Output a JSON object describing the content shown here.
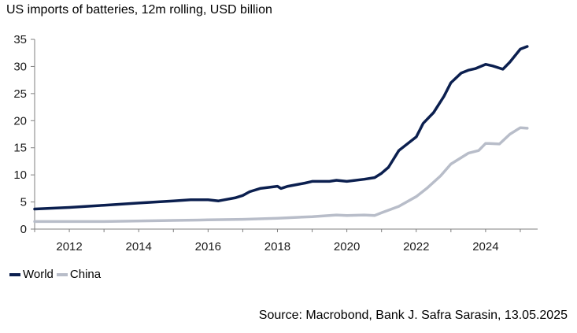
{
  "title": "US imports of batteries, 12m rolling, USD billion",
  "source": "Source: Macrobond, Bank J. Safra Sarasin, 13.05.2025",
  "colors": {
    "world": "#0b1f4f",
    "china": "#b8bdc9",
    "axis": "#7f7f7f"
  },
  "chart_data": {
    "type": "line",
    "title": "US imports of batteries, 12m rolling, USD billion",
    "xlabel": "",
    "ylabel": "",
    "xlim": [
      2011.0,
      2025.5
    ],
    "ylim": [
      0,
      35
    ],
    "yticks": [
      0,
      5,
      10,
      15,
      20,
      25,
      30,
      35
    ],
    "xticks": [
      2012,
      2014,
      2016,
      2018,
      2020,
      2022,
      2024
    ],
    "grid": false,
    "legend_position": "bottom-left",
    "series": [
      {
        "name": "World",
        "x": [
          2011.0,
          2012.0,
          2013.0,
          2014.0,
          2015.0,
          2015.5,
          2016.0,
          2016.3,
          2016.8,
          2017.0,
          2017.2,
          2017.5,
          2018.0,
          2018.1,
          2018.3,
          2018.8,
          2019.0,
          2019.5,
          2019.7,
          2020.0,
          2020.5,
          2020.8,
          2021.0,
          2021.2,
          2021.5,
          2022.0,
          2022.2,
          2022.5,
          2022.8,
          2023.0,
          2023.3,
          2023.5,
          2023.7,
          2024.0,
          2024.2,
          2024.4,
          2024.5,
          2024.7,
          2025.0,
          2025.2
        ],
        "values": [
          3.7,
          4.0,
          4.4,
          4.8,
          5.2,
          5.4,
          5.4,
          5.2,
          5.8,
          6.2,
          6.9,
          7.5,
          7.9,
          7.5,
          7.9,
          8.5,
          8.8,
          8.8,
          9.0,
          8.8,
          9.2,
          9.5,
          10.3,
          11.4,
          14.5,
          17.0,
          19.5,
          21.5,
          24.5,
          27.0,
          28.8,
          29.3,
          29.6,
          30.4,
          30.1,
          29.7,
          29.5,
          30.8,
          33.2,
          33.7
        ]
      },
      {
        "name": "China",
        "x": [
          2011.0,
          2013.0,
          2015.0,
          2016.0,
          2017.0,
          2018.0,
          2019.0,
          2019.7,
          2020.0,
          2020.5,
          2020.8,
          2021.0,
          2021.5,
          2022.0,
          2022.3,
          2022.7,
          2023.0,
          2023.5,
          2023.8,
          2024.0,
          2024.1,
          2024.4,
          2024.7,
          2025.0,
          2025.2
        ],
        "values": [
          1.4,
          1.4,
          1.6,
          1.7,
          1.8,
          2.0,
          2.3,
          2.6,
          2.5,
          2.6,
          2.5,
          3.0,
          4.2,
          6.0,
          7.5,
          9.8,
          12.0,
          14.0,
          14.5,
          15.8,
          15.8,
          15.7,
          17.5,
          18.7,
          18.6
        ]
      }
    ]
  },
  "legend": {
    "world_label": "World",
    "china_label": "China"
  }
}
